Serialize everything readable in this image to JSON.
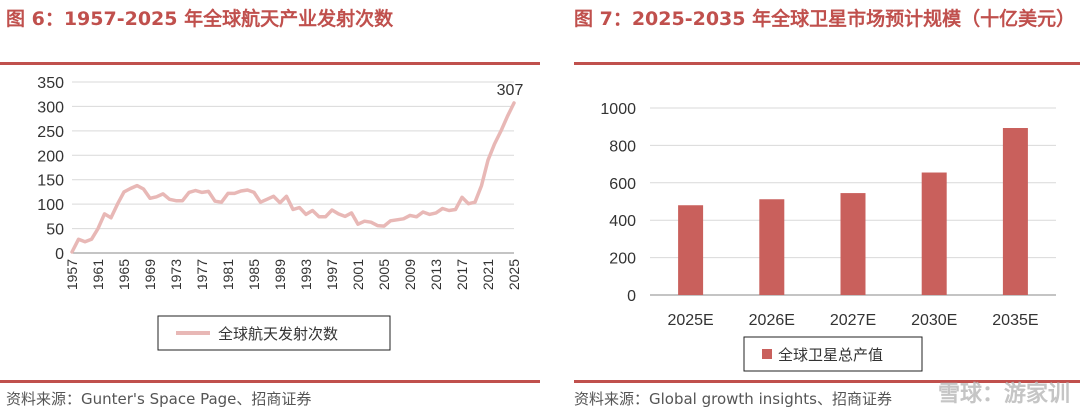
{
  "figures": [
    {
      "title": "图 6：1957-2025 年全球航天产业发射次数",
      "source": "资料来源：Gunter's Space Page、招商证券"
    },
    {
      "title": "图 7：2025-2035 年全球卫星市场预计规模（十亿美元）",
      "source": "资料来源：Global growth insights、招商证券"
    }
  ],
  "watermark": "雪球：游家训",
  "chart_data": [
    {
      "type": "line",
      "title": "1957-2025 年全球航天产业发射次数",
      "series_name": "全球航天发射次数",
      "color": "#e8b8b6",
      "ylim": [
        0,
        350
      ],
      "yticks": [
        0,
        50,
        100,
        150,
        200,
        250,
        300,
        350
      ],
      "xlim": [
        1957,
        2025
      ],
      "xticks": [
        1957,
        1961,
        1965,
        1969,
        1973,
        1977,
        1981,
        1985,
        1989,
        1993,
        1997,
        2001,
        2005,
        2009,
        2013,
        2017,
        2021,
        2025
      ],
      "end_label": "307",
      "x": [
        1957,
        1958,
        1959,
        1960,
        1961,
        1962,
        1963,
        1964,
        1965,
        1966,
        1967,
        1968,
        1969,
        1970,
        1971,
        1972,
        1973,
        1974,
        1975,
        1976,
        1977,
        1978,
        1979,
        1980,
        1981,
        1982,
        1983,
        1984,
        1985,
        1986,
        1987,
        1988,
        1989,
        1990,
        1991,
        1992,
        1993,
        1994,
        1995,
        1996,
        1997,
        1998,
        1999,
        2000,
        2001,
        2002,
        2003,
        2004,
        2005,
        2006,
        2007,
        2008,
        2009,
        2010,
        2011,
        2012,
        2013,
        2014,
        2015,
        2016,
        2017,
        2018,
        2019,
        2020,
        2021,
        2022,
        2023,
        2024,
        2025
      ],
      "y": [
        2,
        28,
        23,
        28,
        50,
        80,
        72,
        100,
        125,
        132,
        138,
        131,
        112,
        115,
        121,
        110,
        107,
        107,
        124,
        128,
        124,
        126,
        106,
        104,
        122,
        122,
        127,
        129,
        124,
        104,
        110,
        116,
        103,
        116,
        89,
        93,
        79,
        87,
        74,
        74,
        88,
        80,
        75,
        82,
        59,
        65,
        63,
        56,
        55,
        66,
        68,
        70,
        77,
        74,
        84,
        79,
        82,
        91,
        87,
        89,
        114,
        101,
        104,
        138,
        190,
        223,
        250,
        280,
        307
      ]
    },
    {
      "type": "bar",
      "title": "2025-2035 年全球卫星市场预计规模（十亿美元）",
      "series_name": "全球卫星总产值",
      "color": "#c9605c",
      "categories": [
        "2025E",
        "2026E",
        "2027E",
        "2030E",
        "2035E"
      ],
      "values": [
        480,
        512,
        545,
        655,
        893
      ],
      "ylim": [
        0,
        1000
      ],
      "yticks": [
        0,
        200,
        400,
        600,
        800,
        1000
      ]
    }
  ]
}
